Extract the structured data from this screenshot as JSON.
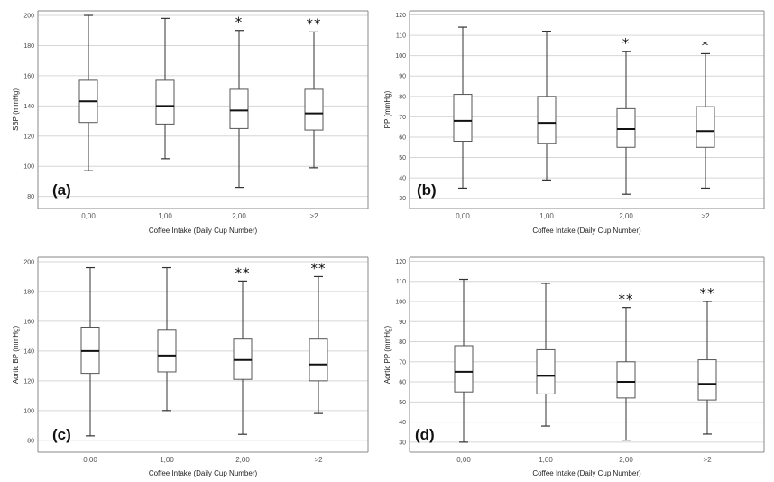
{
  "chart_data": [
    {
      "type": "box",
      "panel_label": "(a)",
      "ylabel": "SBP (mmHg)",
      "xlabel": "Coffee Intake (Daily Cup Number)",
      "categories": [
        "0,00",
        "1,00",
        "2,00",
        ">2"
      ],
      "ylim": [
        72,
        203
      ],
      "yticks": [
        80,
        100,
        120,
        140,
        160,
        180,
        200
      ],
      "boxes": [
        {
          "min": 97,
          "q1": 129,
          "median": 143,
          "q3": 157,
          "max": 200,
          "sig": ""
        },
        {
          "min": 105,
          "q1": 128,
          "median": 140,
          "q3": 157,
          "max": 198,
          "sig": ""
        },
        {
          "min": 86,
          "q1": 125,
          "median": 137,
          "q3": 151,
          "max": 190,
          "sig": "*"
        },
        {
          "min": 99,
          "q1": 124,
          "median": 135,
          "q3": 151,
          "max": 189,
          "sig": "**"
        }
      ]
    },
    {
      "type": "box",
      "panel_label": "(b)",
      "ylabel": "PP (mmHg)",
      "xlabel": "Coffee Intake (Daily Cup Number)",
      "categories": [
        "0,00",
        "1,00",
        "2,00",
        ">2"
      ],
      "ylim": [
        25,
        122
      ],
      "yticks": [
        30,
        40,
        50,
        60,
        70,
        80,
        90,
        100,
        110,
        120
      ],
      "boxes": [
        {
          "min": 35,
          "q1": 58,
          "median": 68,
          "q3": 81,
          "max": 114,
          "sig": ""
        },
        {
          "min": 39,
          "q1": 57,
          "median": 67,
          "q3": 80,
          "max": 112,
          "sig": ""
        },
        {
          "min": 32,
          "q1": 55,
          "median": 64,
          "q3": 74,
          "max": 102,
          "sig": "*"
        },
        {
          "min": 35,
          "q1": 55,
          "median": 63,
          "q3": 75,
          "max": 101,
          "sig": "*"
        }
      ]
    },
    {
      "type": "box",
      "panel_label": "(c)",
      "ylabel": "Aortic BP (mmHg)",
      "xlabel": "Coffee Intake (Daily Cup Number)",
      "categories": [
        "0,00",
        "1,00",
        "2,00",
        ">2"
      ],
      "ylim": [
        72,
        203
      ],
      "yticks": [
        80,
        100,
        120,
        140,
        160,
        180,
        200
      ],
      "boxes": [
        {
          "min": 83,
          "q1": 125,
          "median": 140,
          "q3": 156,
          "max": 196,
          "sig": ""
        },
        {
          "min": 100,
          "q1": 126,
          "median": 137,
          "q3": 154,
          "max": 196,
          "sig": ""
        },
        {
          "min": 84,
          "q1": 121,
          "median": 134,
          "q3": 148,
          "max": 187,
          "sig": "**"
        },
        {
          "min": 98,
          "q1": 120,
          "median": 131,
          "q3": 148,
          "max": 190,
          "sig": "**"
        }
      ]
    },
    {
      "type": "box",
      "panel_label": "(d)",
      "ylabel": "Aortic PP (mmHg)",
      "xlabel": "Coffee Intake (Daily Cup Number)",
      "categories": [
        "0,00",
        "1,00",
        "2,00",
        ">2"
      ],
      "ylim": [
        25,
        122
      ],
      "yticks": [
        30,
        40,
        50,
        60,
        70,
        80,
        90,
        100,
        110,
        120
      ],
      "boxes": [
        {
          "min": 30,
          "q1": 55,
          "median": 65,
          "q3": 78,
          "max": 111,
          "sig": ""
        },
        {
          "min": 38,
          "q1": 54,
          "median": 63,
          "q3": 76,
          "max": 109,
          "sig": ""
        },
        {
          "min": 31,
          "q1": 52,
          "median": 60,
          "q3": 70,
          "max": 97,
          "sig": "**"
        },
        {
          "min": 34,
          "q1": 51,
          "median": 59,
          "q3": 71,
          "max": 100,
          "sig": "**"
        }
      ]
    }
  ]
}
